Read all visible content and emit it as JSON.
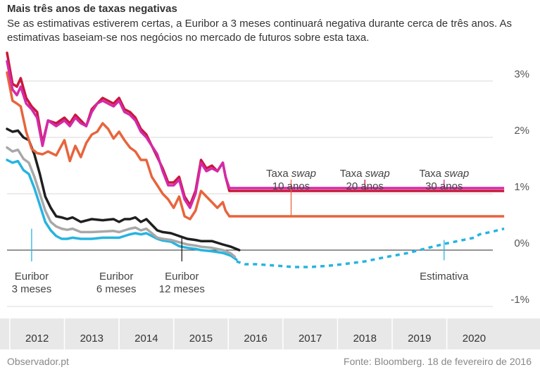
{
  "title": "Mais três anos de taxas negativas",
  "subtitle": "Se as estimativas estiverem certas, a Euribor a 3 meses continuará negativa durante cerca de três anos. As estimativas baseiam-se nos negócios no mercado de futuros sobre esta taxa.",
  "footer": {
    "source_left": "Observador.pt",
    "source_right": "Fonte: Bloomberg. 18 de fevereiro de 2016"
  },
  "colors": {
    "swap10": "#e8643c",
    "swap20": "#c8173c",
    "swap30": "#d42aa9",
    "euribor3": "#26b4e0",
    "euribor6": "#a8a8a8",
    "euribor12": "#1f1f1f"
  },
  "chart_data": {
    "type": "line",
    "title": "Mais três anos de taxas negativas",
    "xlabel": "",
    "ylabel": "",
    "xlim": [
      2011.45,
      2020.6
    ],
    "ylim": [
      -1,
      3.4
    ],
    "y_ticks": [
      {
        "value": 3,
        "label": "3%"
      },
      {
        "value": 2,
        "label": "2%"
      },
      {
        "value": 1,
        "label": "1%"
      },
      {
        "value": 0,
        "label": "0%"
      },
      {
        "value": -1,
        "label": "-1%"
      }
    ],
    "x_ticks": [
      {
        "value": 2012,
        "label": "2012"
      },
      {
        "value": 2013,
        "label": "2013"
      },
      {
        "value": 2014,
        "label": "2014"
      },
      {
        "value": 2015,
        "label": "2015"
      },
      {
        "value": 2016,
        "label": "2016"
      },
      {
        "value": 2017,
        "label": "2017"
      },
      {
        "value": 2018,
        "label": "2018"
      },
      {
        "value": 2019,
        "label": "2019"
      },
      {
        "value": 2020,
        "label": "2020"
      }
    ],
    "series": [
      {
        "key": "swap10",
        "name": "Taxa swap 10 anos",
        "name_main": "Taxa ",
        "name_em": "swap",
        "name_sub": "10 anos",
        "x": [
          2011.45,
          2011.55,
          2011.63,
          2011.7,
          2011.8,
          2011.9,
          2012.0,
          2012.1,
          2012.2,
          2012.35,
          2012.5,
          2012.6,
          2012.7,
          2012.8,
          2012.9,
          2013.0,
          2013.1,
          2013.2,
          2013.3,
          2013.4,
          2013.5,
          2013.6,
          2013.7,
          2013.8,
          2013.9,
          2014.0,
          2014.1,
          2014.2,
          2014.3,
          2014.4,
          2014.5,
          2014.6,
          2014.7,
          2014.8,
          2014.9,
          2015.0,
          2015.1,
          2015.2,
          2015.3,
          2015.4,
          2015.45,
          2015.52
        ],
        "y": [
          3.15,
          2.65,
          2.6,
          2.55,
          2.1,
          1.8,
          1.72,
          1.7,
          1.75,
          1.68,
          1.95,
          1.58,
          1.85,
          1.65,
          1.9,
          2.05,
          2.1,
          2.25,
          2.15,
          1.98,
          2.1,
          1.95,
          1.82,
          1.75,
          1.6,
          1.6,
          1.3,
          1.15,
          1.0,
          0.9,
          0.75,
          0.95,
          0.6,
          0.55,
          0.7,
          1.05,
          0.95,
          0.85,
          0.75,
          0.85,
          0.7,
          0.6
        ],
        "projection_value": 0.6
      },
      {
        "key": "swap20",
        "name": "Taxa swap 20 anos",
        "name_main": "Taxa ",
        "name_em": "swap",
        "name_sub": "20 anos",
        "x": [
          2011.45,
          2011.55,
          2011.63,
          2011.7,
          2011.8,
          2011.9,
          2012.0,
          2012.1,
          2012.2,
          2012.35,
          2012.5,
          2012.6,
          2012.7,
          2012.8,
          2012.9,
          2013.0,
          2013.1,
          2013.2,
          2013.3,
          2013.4,
          2013.5,
          2013.6,
          2013.7,
          2013.8,
          2013.9,
          2014.0,
          2014.1,
          2014.2,
          2014.3,
          2014.4,
          2014.5,
          2014.6,
          2014.7,
          2014.8,
          2014.9,
          2015.0,
          2015.1,
          2015.2,
          2015.3,
          2015.4,
          2015.45,
          2015.52
        ],
        "y": [
          3.5,
          2.95,
          2.9,
          3.05,
          2.7,
          2.55,
          2.45,
          1.9,
          2.3,
          2.25,
          2.35,
          2.25,
          2.4,
          2.3,
          2.2,
          2.5,
          2.6,
          2.7,
          2.65,
          2.6,
          2.7,
          2.5,
          2.45,
          2.35,
          2.15,
          2.05,
          1.85,
          1.65,
          1.45,
          1.2,
          1.2,
          1.3,
          0.95,
          0.8,
          1.05,
          1.6,
          1.45,
          1.5,
          1.4,
          1.55,
          1.3,
          1.05
        ],
        "projection_value": 1.05
      },
      {
        "key": "swap30",
        "name": "Taxa swap 30 anos",
        "name_main": "Taxa ",
        "name_em": "swap",
        "name_sub": "30 anos",
        "x": [
          2011.45,
          2011.55,
          2011.63,
          2011.7,
          2011.8,
          2011.9,
          2012.0,
          2012.1,
          2012.2,
          2012.35,
          2012.5,
          2012.6,
          2012.7,
          2012.8,
          2012.9,
          2013.0,
          2013.1,
          2013.2,
          2013.3,
          2013.4,
          2013.5,
          2013.6,
          2013.7,
          2013.8,
          2013.9,
          2014.0,
          2014.1,
          2014.2,
          2014.3,
          2014.4,
          2014.5,
          2014.6,
          2014.7,
          2014.8,
          2014.9,
          2015.0,
          2015.1,
          2015.2,
          2015.3,
          2015.4,
          2015.45,
          2015.52
        ],
        "y": [
          3.35,
          2.85,
          2.75,
          2.9,
          2.6,
          2.5,
          2.35,
          1.85,
          2.3,
          2.2,
          2.3,
          2.2,
          2.35,
          2.25,
          2.2,
          2.45,
          2.6,
          2.65,
          2.6,
          2.55,
          2.65,
          2.45,
          2.4,
          2.3,
          2.1,
          2.0,
          1.85,
          1.7,
          1.4,
          1.15,
          1.15,
          1.25,
          0.9,
          0.75,
          1.0,
          1.55,
          1.4,
          1.45,
          1.4,
          1.55,
          1.3,
          1.1
        ],
        "projection_value": 1.1
      },
      {
        "key": "euribor12",
        "name": "Euribor 12 meses",
        "name_main": "Euribor",
        "name_sub": "12 meses",
        "x": [
          2011.45,
          2011.55,
          2011.65,
          2011.75,
          2011.85,
          2011.95,
          2012.05,
          2012.15,
          2012.25,
          2012.35,
          2012.45,
          2012.55,
          2012.65,
          2012.8,
          2013.0,
          2013.2,
          2013.4,
          2013.5,
          2013.6,
          2013.7,
          2013.8,
          2013.9,
          2014.0,
          2014.1,
          2014.2,
          2014.3,
          2014.45,
          2014.6,
          2014.75,
          2014.9,
          2015.0,
          2015.2,
          2015.4,
          2015.55,
          2015.7
        ],
        "y": [
          2.15,
          2.1,
          2.12,
          2.0,
          1.95,
          1.7,
          1.35,
          0.95,
          0.75,
          0.6,
          0.58,
          0.55,
          0.58,
          0.5,
          0.55,
          0.53,
          0.55,
          0.5,
          0.55,
          0.55,
          0.58,
          0.5,
          0.55,
          0.45,
          0.35,
          0.32,
          0.3,
          0.25,
          0.2,
          0.18,
          0.16,
          0.16,
          0.1,
          0.06,
          0.0
        ]
      },
      {
        "key": "euribor6",
        "name": "Euribor 6 meses",
        "name_main": "Euribor",
        "name_sub": "6 meses",
        "x": [
          2011.45,
          2011.55,
          2011.65,
          2011.75,
          2011.85,
          2011.95,
          2012.05,
          2012.15,
          2012.25,
          2012.35,
          2012.45,
          2012.55,
          2012.65,
          2012.8,
          2013.0,
          2013.2,
          2013.4,
          2013.5,
          2013.6,
          2013.7,
          2013.8,
          2013.9,
          2014.0,
          2014.1,
          2014.2,
          2014.3,
          2014.45,
          2014.6,
          2014.75,
          2014.9,
          2015.0,
          2015.2,
          2015.4,
          2015.55,
          2015.62
        ],
        "y": [
          1.82,
          1.75,
          1.78,
          1.62,
          1.55,
          1.3,
          1.0,
          0.7,
          0.5,
          0.42,
          0.38,
          0.36,
          0.38,
          0.32,
          0.32,
          0.33,
          0.34,
          0.32,
          0.35,
          0.38,
          0.4,
          0.35,
          0.38,
          0.3,
          0.22,
          0.2,
          0.18,
          0.14,
          0.1,
          0.08,
          0.06,
          0.04,
          0.0,
          -0.06,
          -0.12
        ]
      },
      {
        "key": "euribor3",
        "name": "Euribor 3 meses",
        "name_main": "Euribor",
        "name_sub": "3 meses",
        "x": [
          2011.45,
          2011.55,
          2011.65,
          2011.75,
          2011.85,
          2011.95,
          2012.05,
          2012.15,
          2012.25,
          2012.35,
          2012.45,
          2012.55,
          2012.65,
          2012.8,
          2013.0,
          2013.2,
          2013.4,
          2013.5,
          2013.6,
          2013.7,
          2013.8,
          2013.9,
          2014.0,
          2014.1,
          2014.2,
          2014.3,
          2014.45,
          2014.6,
          2014.75,
          2014.9,
          2015.0,
          2015.2,
          2015.4,
          2015.55,
          2015.65
        ],
        "y": [
          1.6,
          1.55,
          1.58,
          1.42,
          1.35,
          1.1,
          0.8,
          0.5,
          0.35,
          0.25,
          0.2,
          0.2,
          0.22,
          0.2,
          0.2,
          0.22,
          0.22,
          0.22,
          0.25,
          0.28,
          0.3,
          0.28,
          0.3,
          0.25,
          0.2,
          0.17,
          0.15,
          0.07,
          0.04,
          0.02,
          0.0,
          -0.02,
          -0.05,
          -0.1,
          -0.17
        ]
      },
      {
        "key": "estimativa",
        "name": "Estimativa",
        "name_main": "Estimativa",
        "name_sub": "",
        "dashed": true,
        "x": [
          2015.65,
          2015.8,
          2016.0,
          2016.3,
          2016.7,
          2017.0,
          2017.3,
          2017.6,
          2018.0,
          2018.4,
          2018.8,
          2019.2,
          2019.5,
          2019.8,
          2020.0,
          2020.1,
          2020.3,
          2020.55
        ],
        "y": [
          -0.2,
          -0.25,
          -0.25,
          -0.27,
          -0.3,
          -0.3,
          -0.28,
          -0.25,
          -0.2,
          -0.12,
          -0.05,
          0.05,
          0.12,
          0.18,
          0.22,
          0.28,
          0.32,
          0.38
        ]
      }
    ]
  }
}
